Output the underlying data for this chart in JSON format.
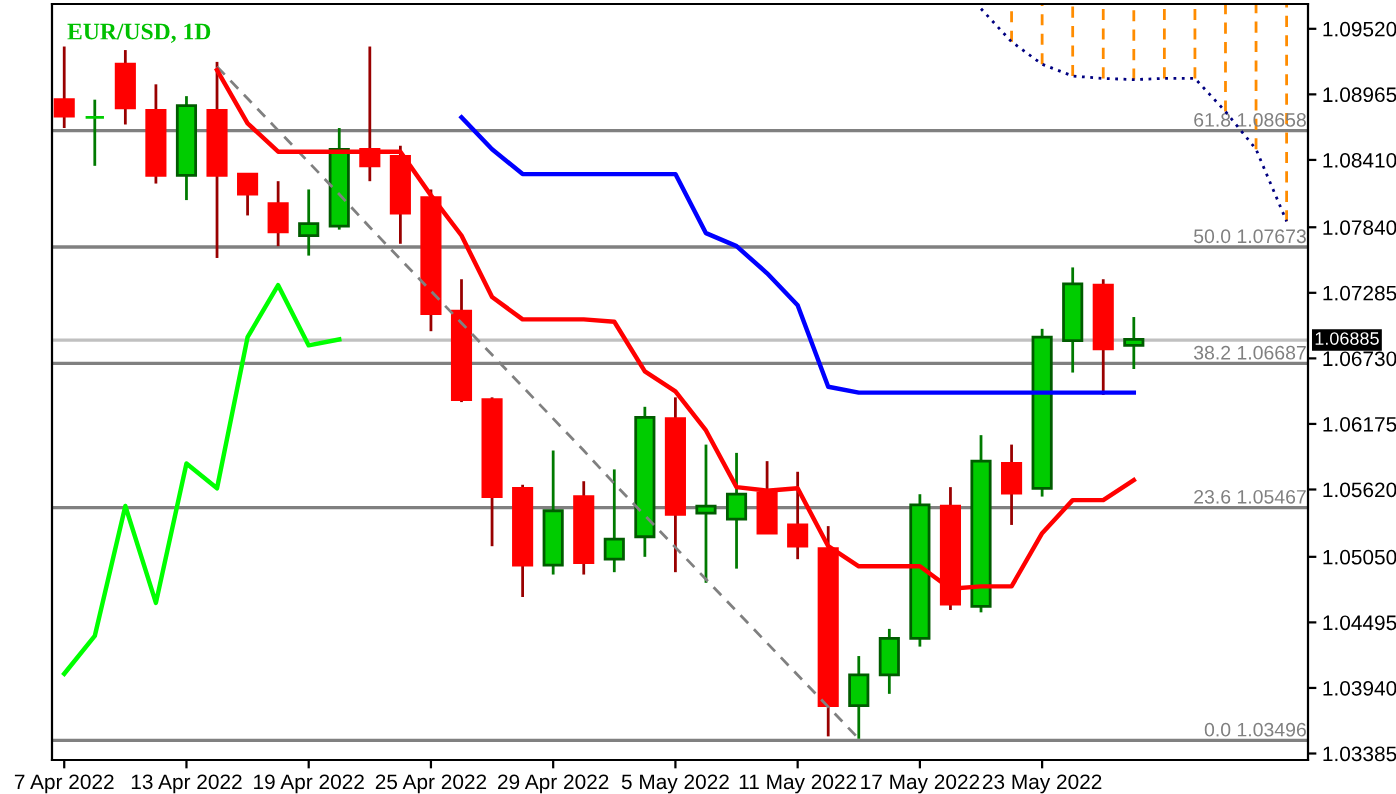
{
  "chart_data": {
    "type": "candlestick",
    "title": "EUR/USD, 1D",
    "categories": [
      "7 Apr 2022",
      null,
      null,
      null,
      "13 Apr 2022",
      null,
      null,
      null,
      "19 Apr 2022",
      null,
      null,
      null,
      "25 Apr 2022",
      null,
      null,
      null,
      "29 Apr 2022",
      null,
      null,
      null,
      "5 May 2022",
      null,
      null,
      null,
      "11 May 2022",
      null,
      null,
      null,
      "17 May 2022",
      null,
      null,
      null,
      "23 May 2022",
      null,
      null,
      null,
      null,
      null,
      null,
      null,
      null
    ],
    "ohlc": [
      [
        1.0892,
        1.0937,
        1.0868,
        1.0878
      ],
      [
        1.0877,
        1.0892,
        1.0836,
        1.0877
      ],
      [
        1.0922,
        1.0934,
        1.0871,
        1.0885
      ],
      [
        1.0883,
        1.0905,
        1.0821,
        1.0828
      ],
      [
        1.0828,
        1.0895,
        1.0807,
        1.0887
      ],
      [
        1.0883,
        1.0924,
        1.0758,
        1.0828
      ],
      [
        1.0829,
        1.0829,
        1.0794,
        1.0812
      ],
      [
        1.0804,
        1.0823,
        1.0768,
        1.078
      ],
      [
        1.0777,
        1.0816,
        1.076,
        1.0787
      ],
      [
        1.0785,
        1.0868,
        1.0782,
        1.085
      ],
      [
        1.085,
        1.0937,
        1.0823,
        1.0836
      ],
      [
        1.0844,
        1.0853,
        1.077,
        1.0796
      ],
      [
        1.0809,
        1.0816,
        1.0696,
        1.0711
      ],
      [
        1.0713,
        1.074,
        1.0636,
        1.0638
      ],
      [
        1.0638,
        1.064,
        1.0514,
        1.0556
      ],
      [
        1.0563,
        1.0566,
        1.0471,
        1.0498
      ],
      [
        1.0498,
        1.0595,
        1.049,
        1.0544
      ],
      [
        1.0556,
        1.0569,
        1.049,
        1.05
      ],
      [
        1.0503,
        1.0579,
        1.0492,
        1.052
      ],
      [
        1.0522,
        1.0632,
        1.0505,
        1.0623
      ],
      [
        1.0622,
        1.064,
        1.0492,
        1.0541
      ],
      [
        1.0542,
        1.06,
        1.0483,
        1.0548
      ],
      [
        1.0537,
        1.0593,
        1.0495,
        1.0558
      ],
      [
        1.0559,
        1.0586,
        1.0525,
        1.0525
      ],
      [
        1.0532,
        1.0577,
        1.0503,
        1.0514
      ],
      [
        1.0512,
        1.0531,
        1.0353,
        1.0379
      ],
      [
        1.0379,
        1.0421,
        1.0351,
        1.0405
      ],
      [
        1.0405,
        1.0444,
        1.0389,
        1.0436
      ],
      [
        1.0436,
        1.0558,
        1.0429,
        1.0549
      ],
      [
        1.0548,
        1.0564,
        1.046,
        1.0465
      ],
      [
        1.0463,
        1.0608,
        1.0458,
        1.0586
      ],
      [
        1.0584,
        1.06,
        1.0532,
        1.0559
      ],
      [
        1.0563,
        1.0698,
        1.0556,
        1.0691
      ],
      [
        1.0688,
        1.075,
        1.0661,
        1.0736
      ],
      [
        1.0735,
        1.074,
        1.0642,
        1.0681
      ],
      [
        1.0684,
        1.0708,
        1.0664,
        1.0689
      ],
      null,
      null,
      null,
      null,
      null
    ],
    "colors": [
      "#ff0000",
      "#00cc00",
      "#ff0000",
      "#ff0000",
      "#00cc00",
      "#ff0000",
      "#ff0000",
      "#ff0000",
      "#00cc00",
      "#00cc00",
      "#ff0000",
      "#ff0000",
      "#ff0000",
      "#ff0000",
      "#ff0000",
      "#ff0000",
      "#00cc00",
      "#ff0000",
      "#00cc00",
      "#00cc00",
      "#ff0000",
      "#00cc00",
      "#00cc00",
      "#ff0000",
      "#ff0000",
      "#ff0000",
      "#00cc00",
      "#00cc00",
      "#00cc00",
      "#ff0000",
      "#00cc00",
      "#ff0000",
      "#00cc00",
      "#00cc00",
      "#ff0000",
      "#00cc00",
      null,
      null,
      null,
      null,
      null
    ],
    "series": [
      {
        "type": "line",
        "line_style": "dotted",
        "color": "#000080",
        "values": [
          null,
          null,
          null,
          null,
          null,
          null,
          null,
          null,
          null,
          null,
          null,
          null,
          null,
          null,
          null,
          null,
          null,
          null,
          null,
          null,
          null,
          null,
          null,
          null,
          null,
          null,
          null,
          null,
          null,
          null,
          1.0969,
          1.0941,
          1.0922,
          1.0912,
          1.091,
          1.0909,
          1.091,
          1.091,
          1.0882,
          1.085,
          1.0789
        ]
      },
      {
        "type": "line",
        "line_style": "dashed",
        "color": "#808080",
        "values": [
          null,
          null,
          null,
          null,
          null,
          1.092,
          1.0893,
          1.0866,
          1.0839,
          1.0812,
          1.0784,
          1.0757,
          1.073,
          1.0703,
          1.0676,
          1.0649,
          1.0622,
          1.0595,
          1.0567,
          1.054,
          1.0513,
          1.0486,
          1.0459,
          1.0432,
          1.0405,
          1.0378,
          1.0351,
          null,
          null,
          null,
          null,
          null,
          null,
          null,
          null,
          null,
          null,
          null,
          null,
          null,
          null
        ]
      },
      {
        "type": "line",
        "line_style": "solid",
        "color": "#00ff00",
        "values": [
          1.0406,
          1.0438,
          1.0548,
          1.0466,
          1.0584,
          1.0563,
          1.0691,
          1.0735,
          1.0684,
          1.0689,
          null,
          null,
          null,
          null,
          null,
          null,
          null,
          null,
          null,
          null,
          null,
          null,
          null,
          null,
          null,
          null,
          null,
          null,
          null,
          null,
          null,
          null,
          null,
          null,
          null,
          null,
          null,
          null,
          null,
          null,
          null
        ]
      },
      {
        "type": "line",
        "line_style": "solid",
        "color": "#0000ff",
        "values": [
          null,
          null,
          null,
          null,
          null,
          null,
          null,
          null,
          null,
          null,
          null,
          null,
          null,
          1.0877,
          1.085,
          1.0829,
          1.0829,
          1.0829,
          1.0829,
          1.0829,
          1.0829,
          1.0779,
          1.0768,
          1.0745,
          1.0718,
          1.0649,
          1.0644,
          1.0644,
          1.0644,
          1.0644,
          1.0644,
          1.0644,
          1.0644,
          1.0644,
          1.0644,
          1.0644,
          null,
          null,
          null,
          null,
          null
        ]
      },
      {
        "type": "line",
        "line_style": "solid",
        "color": "#ff0000",
        "values": [
          null,
          null,
          null,
          null,
          null,
          1.0917,
          1.0872,
          1.0848,
          1.0848,
          1.0848,
          1.0848,
          1.0848,
          1.0811,
          1.0777,
          1.0725,
          1.0706,
          1.0706,
          1.0706,
          1.0704,
          1.0662,
          1.0645,
          1.0612,
          1.0564,
          1.0561,
          1.0563,
          1.0514,
          1.0497,
          1.0497,
          1.0497,
          1.0478,
          1.048,
          1.048,
          1.0525,
          1.0553,
          1.0553,
          1.057,
          null,
          null,
          null,
          null,
          null
        ]
      }
    ],
    "ref_lines": [
      {
        "axis": "y",
        "value": 1.08658,
        "label": "61.8 1.08658",
        "color": "#808080"
      },
      {
        "axis": "y",
        "value": 1.07673,
        "label": "50.0 1.07673",
        "color": "#808080"
      },
      {
        "axis": "y",
        "value": 1.06687,
        "label": "38.2 1.06687",
        "color": "#808080"
      },
      {
        "axis": "y",
        "value": 1.05467,
        "label": "23.6 1.05467",
        "color": "#808080"
      },
      {
        "axis": "y",
        "value": 1.03496,
        "label": "0.0 1.03496",
        "color": "#808080"
      },
      {
        "axis": "y",
        "value": 1.06885,
        "label": "1.06885",
        "color": "#c0c0c0"
      }
    ],
    "ylim": [
      1.0333,
      1.0973
    ],
    "yticks": [
      {
        "value": 1.0952,
        "label": "1.09520"
      },
      1.08965,
      {
        "value": 1.0841,
        "label": "1.08410"
      },
      {
        "value": 1.0784,
        "label": "1.07840"
      },
      1.07285,
      {
        "value": 1.0673,
        "label": "1.06730"
      },
      1.06175,
      {
        "value": 1.0562,
        "label": "1.05620"
      },
      {
        "value": 1.0505,
        "label": "1.05050"
      },
      1.04495,
      {
        "value": 1.0394,
        "label": "1.03940"
      },
      1.03385
    ],
    "grid": false,
    "legend": false
  }
}
